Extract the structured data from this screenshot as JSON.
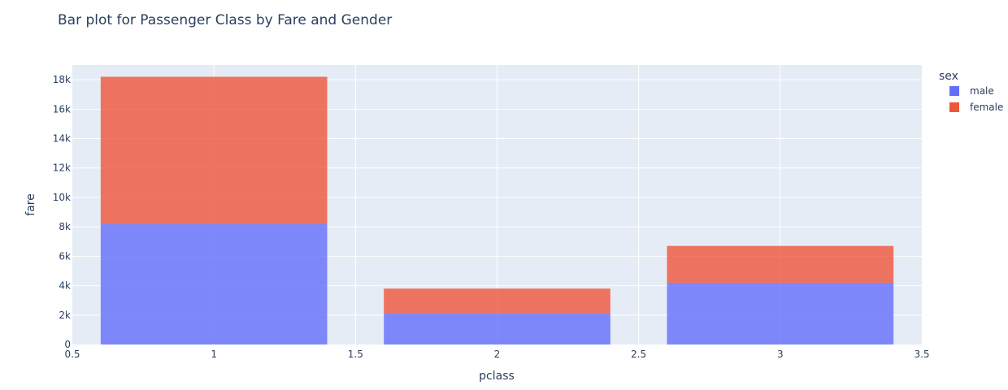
{
  "chart_data": {
    "type": "bar",
    "title": "Bar plot for Passenger Class by Fare and Gender",
    "xlabel": "pclass",
    "ylabel": "fare",
    "xlim": [
      0.5,
      3.5
    ],
    "ylim": [
      0,
      19000
    ],
    "x_ticks": [
      0.5,
      1,
      1.5,
      2,
      2.5,
      3,
      3.5
    ],
    "x_tick_labels": [
      "0.5",
      "1",
      "1.5",
      "2",
      "2.5",
      "3",
      "3.5"
    ],
    "y_ticks": [
      0,
      2000,
      4000,
      6000,
      8000,
      10000,
      12000,
      14000,
      16000,
      18000
    ],
    "y_tick_labels": [
      "0",
      "2k",
      "4k",
      "6k",
      "8k",
      "10k",
      "12k",
      "14k",
      "16k",
      "18k"
    ],
    "barmode": "stack",
    "bar_width": 0.8,
    "categories": [
      1,
      2,
      3
    ],
    "grid": true,
    "legend": {
      "title": "sex",
      "placement": "right"
    },
    "series": [
      {
        "name": "male",
        "color": "#636efa",
        "values": [
          8200,
          2100,
          4200
        ]
      },
      {
        "name": "female",
        "color": "#ef553b",
        "values": [
          10000,
          1700,
          2500
        ]
      }
    ]
  }
}
